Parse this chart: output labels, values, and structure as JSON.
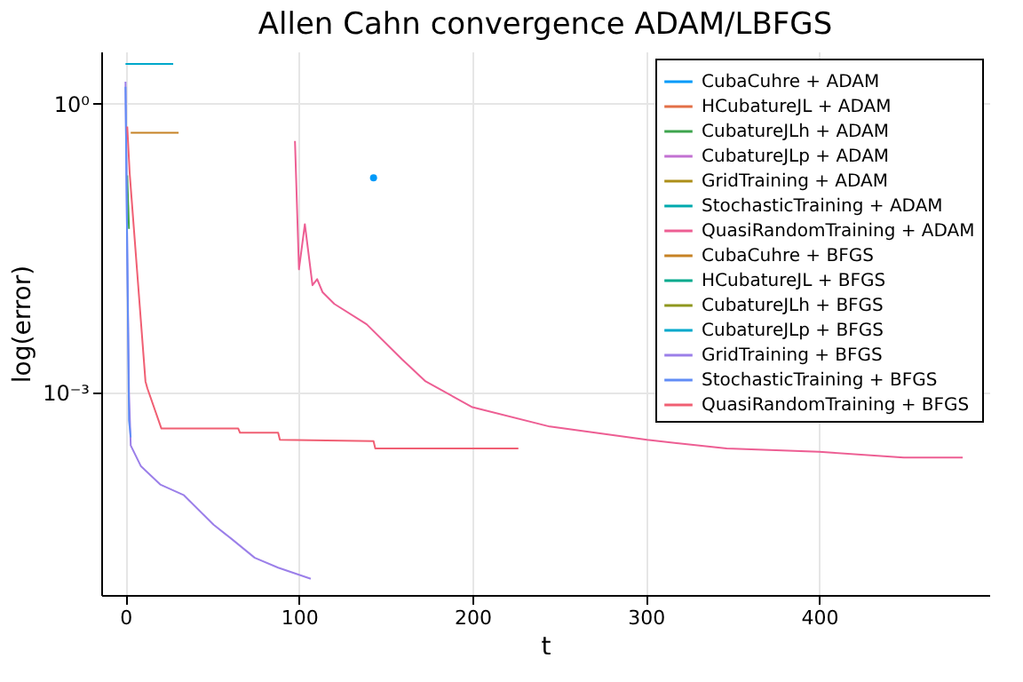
{
  "chart_data": {
    "type": "line",
    "title": "Allen Cahn convergence ADAM/LBFGS",
    "xlabel": "t",
    "ylabel": "log(error)",
    "xlim": [
      -14,
      498
    ],
    "xticks": [
      0,
      100,
      200,
      300,
      400
    ],
    "ylim": [
      7.8e-06,
      3.5
    ],
    "yticks": [
      {
        "value": 0.001,
        "label": "10⁻³"
      },
      {
        "value": 1,
        "label": "10⁰"
      }
    ],
    "log": "y",
    "grid": true,
    "legend": "top right",
    "line_style": "solid",
    "series": [
      {
        "name": "CubaCuhre + ADAM",
        "color": "#009af9",
        "type": "scatter",
        "x": [
          143
        ],
        "values": [
          0.17
        ]
      },
      {
        "name": "HCubatureJL + ADAM",
        "color": "#e26f46"
      },
      {
        "name": "CubatureJLh + ADAM",
        "color": "#3da44d",
        "x": [
          1,
          2
        ],
        "values": [
          0.18,
          0.05
        ]
      },
      {
        "name": "CubatureJLp + ADAM",
        "color": "#c271d2"
      },
      {
        "name": "GridTraining + ADAM",
        "color": "#ac8e18"
      },
      {
        "name": "StochasticTraining + ADAM",
        "color": "#00a9ad"
      },
      {
        "name": "QuasiRandomTraining + ADAM",
        "color": "#ed5e93",
        "x": [
          97.7,
          100,
          103.4,
          107.8,
          110.5,
          113.6,
          120.4,
          139,
          159.5,
          173,
          200,
          244.6,
          300.7,
          346.6,
          400,
          448.7,
          482.7
        ],
        "values": [
          0.41,
          0.019,
          0.056,
          0.013,
          0.015,
          0.011,
          0.0083,
          0.0051,
          0.0022,
          0.0013,
          0.0007,
          0.00044,
          0.00032,
          0.00026,
          0.00024,
          0.00021,
          0.00021
        ]
      },
      {
        "name": "CubaCuhre + BFGS",
        "color": "#c68225",
        "x": [
          3,
          30.6
        ],
        "values": [
          0.5,
          0.5
        ]
      },
      {
        "name": "HCubatureJL + BFGS",
        "color": "#00a98d"
      },
      {
        "name": "CubatureJLh + BFGS",
        "color": "#8e971e"
      },
      {
        "name": "CubatureJLp + BFGS",
        "color": "#00a8cb",
        "x": [
          0,
          27.5
        ],
        "values": [
          2.6,
          2.6
        ]
      },
      {
        "name": "GridTraining + BFGS",
        "color": "#9b7fe9",
        "x": [
          0,
          1,
          2,
          3,
          8.9,
          20,
          33.7,
          50.7,
          61,
          74.5,
          88,
          106.8
        ],
        "values": [
          1.7,
          0.03,
          0.001,
          0.00028,
          0.00017,
          0.00011,
          8.5e-05,
          4.2e-05,
          3e-05,
          1.9e-05,
          1.5e-05,
          1.15e-05
        ]
      },
      {
        "name": "StochasticTraining + BFGS",
        "color": "#618df6",
        "x": [
          0,
          2,
          3
        ],
        "values": [
          1.5,
          0.00051,
          0.00034
        ]
      },
      {
        "name": "QuasiRandomTraining + BFGS",
        "color": "#f05f73",
        "x": [
          1,
          2.4,
          11.5,
          12.6,
          20.7,
          65,
          66,
          88,
          89,
          143,
          144,
          226.5
        ],
        "values": [
          0.58,
          0.19,
          0.0013,
          0.0011,
          0.00042,
          0.00042,
          0.00038,
          0.00038,
          0.00032,
          0.00031,
          0.00026,
          0.00026
        ]
      }
    ]
  }
}
